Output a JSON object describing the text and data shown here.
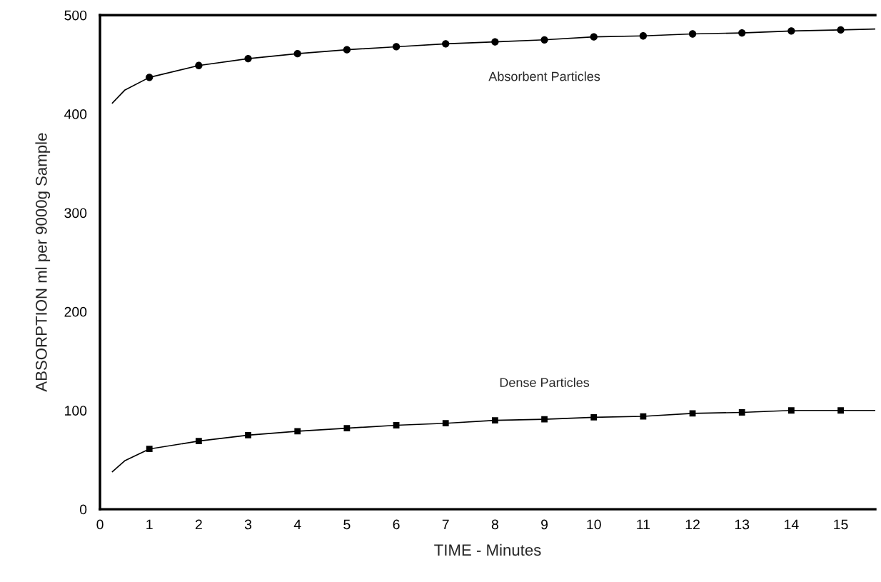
{
  "chart_data": {
    "type": "scatter",
    "xlabel": "TIME - Minutes",
    "ylabel": "ABSORPTION ml per 9000g Sample",
    "xlim": [
      0,
      15.7
    ],
    "ylim": [
      0,
      500
    ],
    "xticks": [
      0,
      1,
      2,
      3,
      4,
      5,
      6,
      7,
      8,
      9,
      10,
      11,
      12,
      13,
      14,
      15
    ],
    "yticks": [
      0,
      100,
      200,
      300,
      400,
      500
    ],
    "grid": false,
    "legend": false,
    "series": [
      {
        "type": "line",
        "marker": "none",
        "line_style": "solid",
        "color": "#000000",
        "x": [
          0.25,
          0.5,
          1,
          2,
          3,
          4,
          5,
          6,
          7,
          8,
          9,
          10,
          11,
          12,
          13,
          14,
          15,
          15.7
        ],
        "values": [
          411,
          424,
          437,
          449,
          456,
          461,
          465,
          468,
          471,
          473,
          475,
          478,
          479,
          481,
          482,
          484,
          485,
          486
        ]
      },
      {
        "type": "line",
        "marker": "none",
        "line_style": "solid",
        "color": "#000000",
        "x": [
          0.25,
          0.5,
          1,
          2,
          3,
          4,
          5,
          6,
          7,
          8,
          9,
          10,
          11,
          12,
          13,
          14,
          15,
          15.7
        ],
        "values": [
          38,
          49,
          61,
          69,
          75,
          79,
          82,
          85,
          87,
          90,
          91,
          93,
          94,
          97,
          98,
          100,
          100,
          100
        ]
      },
      {
        "name": "Absorbent Particles",
        "marker": "circle",
        "color": "#000000",
        "x": [
          1,
          2,
          3,
          4,
          5,
          6,
          7,
          8,
          9,
          10,
          11,
          12,
          13,
          14,
          15
        ],
        "values": [
          437,
          449,
          456,
          461,
          465,
          468,
          471,
          473,
          475,
          478,
          479,
          481,
          482,
          484,
          485
        ]
      },
      {
        "name": "Dense Particles",
        "marker": "square",
        "color": "#000000",
        "x": [
          1,
          2,
          3,
          4,
          5,
          6,
          7,
          8,
          9,
          10,
          11,
          12,
          13,
          14,
          15
        ],
        "values": [
          61,
          69,
          75,
          79,
          82,
          85,
          87,
          90,
          91,
          93,
          94,
          97,
          98,
          100,
          100
        ]
      }
    ]
  }
}
